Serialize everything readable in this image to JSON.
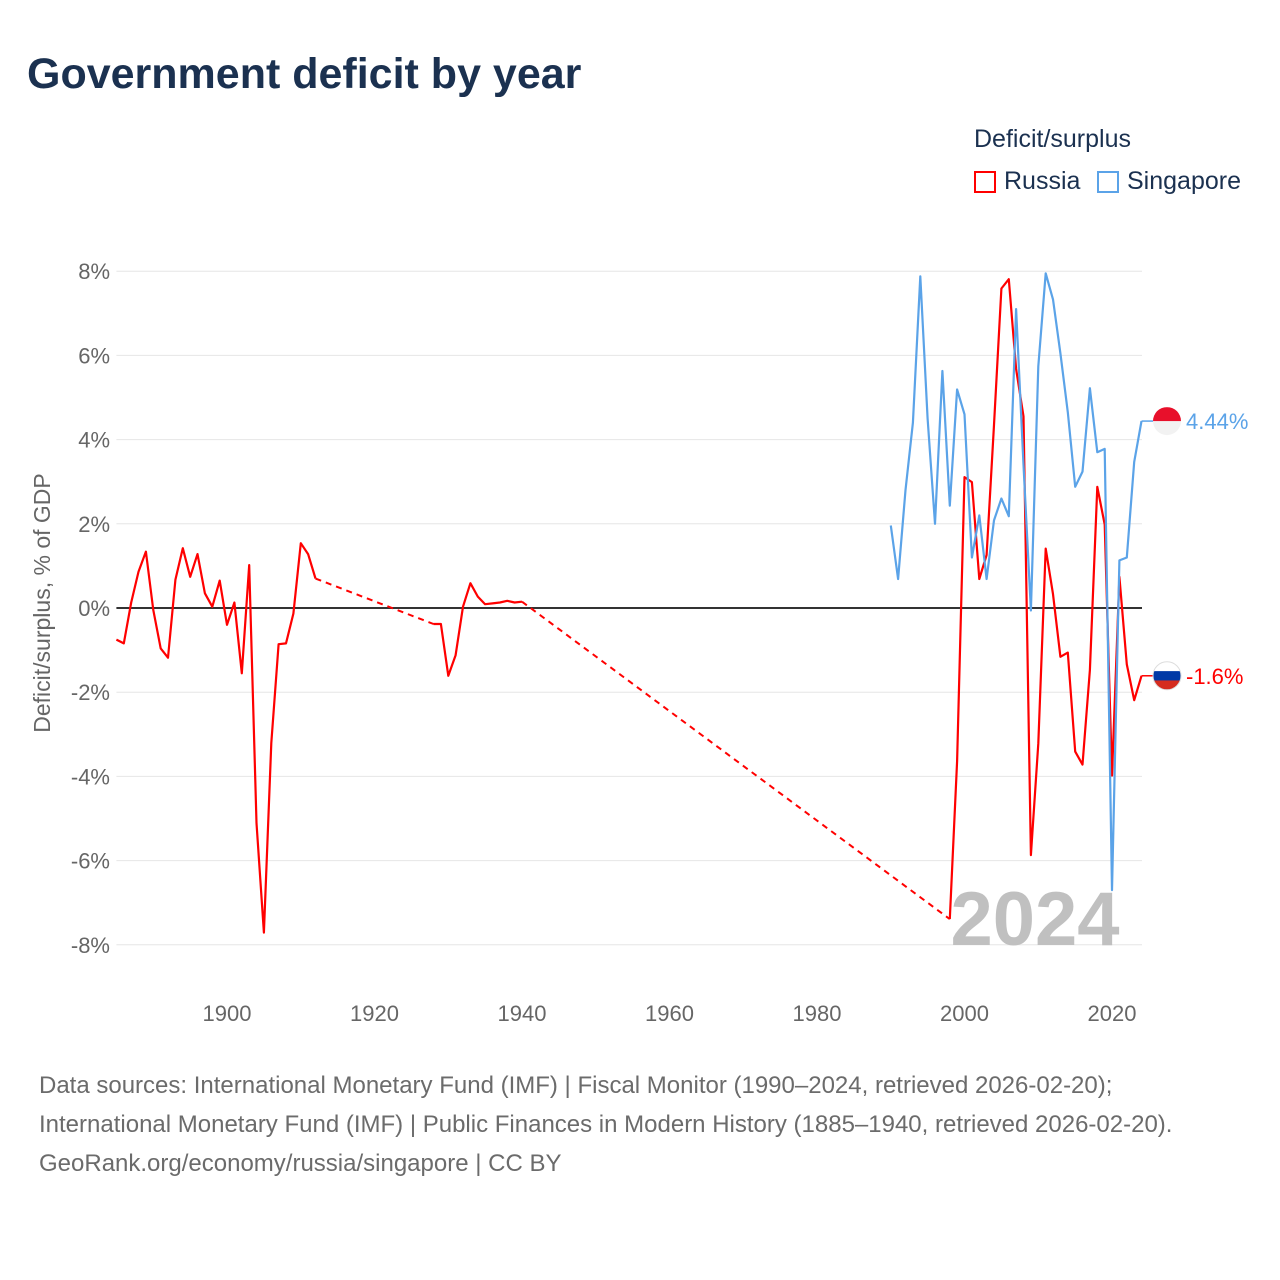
{
  "title": "Government deficit by year",
  "legend": {
    "title": "Deficit/surplus",
    "items": [
      {
        "name": "Russia",
        "color": "#ff0000"
      },
      {
        "name": "Singapore",
        "color": "#5ba3e8"
      }
    ]
  },
  "footer": {
    "sources": "Data sources: International Monetary Fund (IMF) | Fiscal Monitor (1990–2024, retrieved 2026-02-20); International Monetary Fund (IMF) | Public Finances in Modern History (1885–1940, retrieved 2026-02-20).",
    "credit": "GeoRank.org/economy/russia/singapore | CC BY"
  },
  "chart_data": {
    "type": "line",
    "title": "Government deficit by year",
    "xlabel": "",
    "ylabel": "Deficit/surplus, % of GDP",
    "xlim": [
      1885,
      2024
    ],
    "ylim": [
      -8,
      8
    ],
    "xticks": [
      1900,
      1920,
      1940,
      1960,
      1980,
      2000,
      2020
    ],
    "xtick_labels": [
      "1900",
      "1920",
      "1940",
      "1960",
      "1980",
      "2000",
      "2020"
    ],
    "yticks": [
      -8,
      -6,
      -4,
      -2,
      0,
      2,
      4,
      6,
      8
    ],
    "ytick_labels": [
      "-8%",
      "-6%",
      "-4%",
      "-2%",
      "0%",
      "2%",
      "4%",
      "6%",
      "8%"
    ],
    "grid": true,
    "legend_position": "top-right",
    "year_watermark": "2024",
    "series": [
      {
        "name": "Russia",
        "color": "#ff0000",
        "end_label": "-1.6%",
        "flag": "russia-flag",
        "x": [
          1885,
          1886,
          1887,
          1888,
          1889,
          1890,
          1891,
          1892,
          1893,
          1894,
          1895,
          1896,
          1897,
          1898,
          1899,
          1900,
          1901,
          1902,
          1903,
          1904,
          1905,
          1906,
          1907,
          1908,
          1909,
          1910,
          1911,
          1912,
          1928,
          1929,
          1930,
          1931,
          1932,
          1933,
          1934,
          1935,
          1936,
          1937,
          1938,
          1939,
          1940,
          1998,
          1999,
          2000,
          2001,
          2002,
          2003,
          2004,
          2005,
          2006,
          2007,
          2008,
          2009,
          2010,
          2011,
          2012,
          2013,
          2014,
          2015,
          2016,
          2017,
          2018,
          2019,
          2020,
          2021,
          2022,
          2023,
          2024
        ],
        "y": [
          -0.75,
          -0.84,
          0.13,
          0.86,
          1.34,
          -0.05,
          -0.96,
          -1.18,
          0.67,
          1.42,
          0.74,
          1.28,
          0.35,
          0.03,
          0.65,
          -0.4,
          0.13,
          -1.55,
          1.02,
          -5.11,
          -7.71,
          -3.21,
          -0.86,
          -0.84,
          -0.13,
          1.54,
          1.28,
          0.7,
          -0.38,
          -0.38,
          -1.61,
          -1.12,
          0.03,
          0.59,
          0.27,
          0.09,
          0.11,
          0.13,
          0.17,
          0.13,
          0.15,
          -7.39,
          -3.64,
          3.11,
          2.99,
          0.69,
          1.26,
          4.35,
          7.59,
          7.81,
          5.68,
          4.55,
          -5.87,
          -3.22,
          1.41,
          0.33,
          -1.16,
          -1.06,
          -3.41,
          -3.72,
          -1.47,
          2.88,
          1.98,
          -3.98,
          0.74,
          -1.34,
          -2.19,
          -1.61
        ]
      },
      {
        "name": "Singapore",
        "color": "#5ba3e8",
        "end_label": "4.44%",
        "flag": "singapore-flag",
        "x": [
          1990,
          1991,
          1992,
          1993,
          1994,
          1995,
          1996,
          1997,
          1998,
          1999,
          2000,
          2001,
          2002,
          2003,
          2004,
          2005,
          2006,
          2007,
          2008,
          2009,
          2010,
          2011,
          2012,
          2013,
          2014,
          2015,
          2016,
          2017,
          2018,
          2019,
          2020,
          2021,
          2022,
          2023,
          2024
        ],
        "y": [
          1.96,
          0.69,
          2.8,
          4.4,
          7.88,
          4.5,
          2.0,
          5.63,
          2.43,
          5.19,
          4.6,
          1.2,
          2.2,
          0.69,
          2.08,
          2.6,
          2.18,
          7.1,
          3.4,
          -0.06,
          5.74,
          7.95,
          7.33,
          6.05,
          4.65,
          2.88,
          3.24,
          5.22,
          3.7,
          3.78,
          -6.7,
          1.13,
          1.2,
          3.47,
          4.44
        ]
      }
    ]
  }
}
